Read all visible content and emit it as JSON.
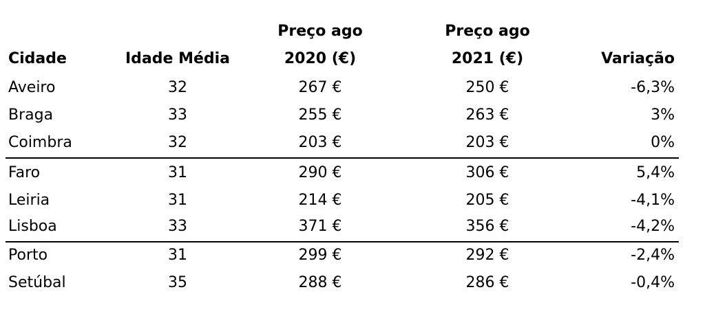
{
  "table": {
    "headers": {
      "city": "Cidade",
      "age": "Idade Média",
      "price2020_line1": "Preço ago",
      "price2020_line2": "2020 (€)",
      "price2021_line1": "Preço ago",
      "price2021_line2": "2021 (€)",
      "variation": "Variação"
    },
    "rows": [
      {
        "city": "Aveiro",
        "age": "32",
        "price2020": "267 €",
        "price2021": "250 €",
        "variation": "-6,3%"
      },
      {
        "city": "Braga",
        "age": "33",
        "price2020": "255 €",
        "price2021": "263 €",
        "variation": "3%"
      },
      {
        "city": "Coimbra",
        "age": "32",
        "price2020": "203 €",
        "price2021": "203 €",
        "variation": "0%"
      },
      {
        "city": "Faro",
        "age": "31",
        "price2020": "290 €",
        "price2021": "306 €",
        "variation": "5,4%"
      },
      {
        "city": "Leiria",
        "age": "31",
        "price2020": "214 €",
        "price2021": "205 €",
        "variation": "-4,1%"
      },
      {
        "city": "Lisboa",
        "age": "33",
        "price2020": "371 €",
        "price2021": "356 €",
        "variation": "-4,2%"
      },
      {
        "city": "Porto",
        "age": "31",
        "price2020": "299 €",
        "price2021": "292 €",
        "variation": "-2,4%"
      },
      {
        "city": "Setúbal",
        "age": "35",
        "price2020": "288 €",
        "price2021": "286 €",
        "variation": "-0,4%"
      }
    ]
  }
}
